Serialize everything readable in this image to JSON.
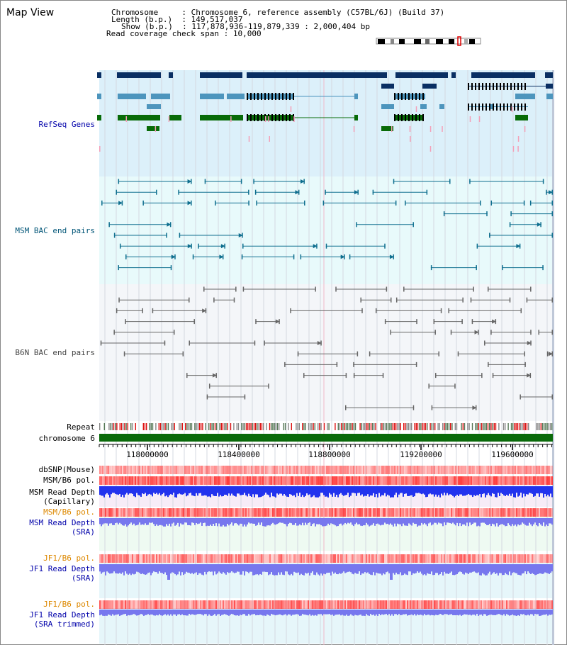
{
  "header": {
    "title": "Map View",
    "info_lines": [
      {
        "label": "Chromosome",
        "value": "Chromosome 6, reference assembly (C57BL/6J) (Build 37)"
      },
      {
        "label": "Length (b.p.)",
        "value": "149,517,037"
      },
      {
        "label": "Show (b.p.)",
        "value": "117,878,936-119,879,339 : 2,000,404 bp"
      },
      {
        "label": "Read coverage check span",
        "value": "10,000"
      }
    ]
  },
  "tracks": {
    "refseq": {
      "label": "RefSeq Genes",
      "color": "#0000aa"
    },
    "msm_bac": {
      "label": "MSM BAC end pairs",
      "color": "#005577"
    },
    "b6n_bac": {
      "label": "B6N BAC end pairs",
      "color": "#444444"
    },
    "repeat": {
      "label": "Repeat"
    },
    "chromosome": {
      "label": "chromosome 6"
    },
    "dbsnp": {
      "label": "dbSNP(Mouse)"
    },
    "msm_b6_pol_1": {
      "label": "MSM/B6 pol."
    },
    "msm_depth_cap": {
      "label": "MSM Read Depth\n(Capillary)"
    },
    "msm_b6_pol_2": {
      "label": "MSM/B6 pol."
    },
    "msm_depth_sra": {
      "label": "MSM Read Depth\n(SRA)"
    },
    "jf1_b6_pol_1": {
      "label": "JF1/B6 pol."
    },
    "jf1_depth_sra": {
      "label": "JF1 Read Depth\n(SRA)"
    },
    "jf1_b6_pol_2": {
      "label": "JF1/B6 pol."
    },
    "jf1_depth_trim": {
      "label": "JF1 Read Depth\n(SRA trimmed)"
    }
  },
  "axis": {
    "ticks": [
      "118000000",
      "118400000",
      "118800000",
      "119200000",
      "119600000"
    ]
  },
  "colors": {
    "refseq_dark": "#0a2f63",
    "refseq_mid": "#4d95bd",
    "refseq_green": "#086b08",
    "msm_line": "#0f6f8f",
    "b6n_line": "#666666",
    "pol_red": "#ff5555",
    "depth_blue": "#2233ee",
    "depth_light": "#7777ee",
    "pol_label": "#dd8800"
  }
}
